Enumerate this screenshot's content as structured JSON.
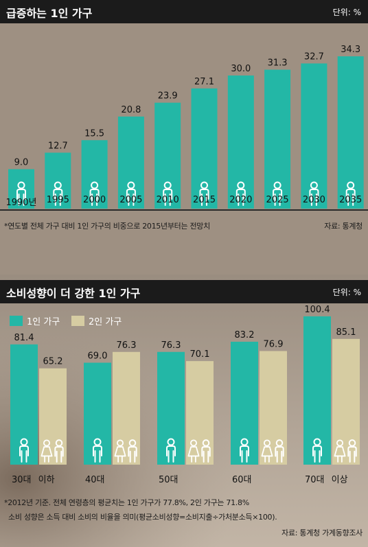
{
  "colors": {
    "teal": "#23b7a6",
    "beige": "#d6cca2",
    "title_bg": "#1b1b1b",
    "icon": "#ffffff"
  },
  "chart1": {
    "title": "급증하는 1인 가구",
    "unit": "단위: %",
    "note": "*연도별 전체 가구 대비 1인 가구의 비중으로 2015년부터는 전망치",
    "source": "자료: 통계청"
  },
  "chart2": {
    "title": "소비성향이 더 강한 1인 가구",
    "unit": "단위: %",
    "legend": [
      "1인 가구",
      "2인 가구"
    ],
    "note_line1": "*2012년 기준. 전체 연령층의 평균치는 1인 가구가 77.8%, 2인 가구는 71.8%",
    "note_line2": "소비 성향은 소득 대비 소비의 비율을 의미(평균소비성향=소비지출÷가처분소득×100).",
    "source": "자료: 통계청 가계동향조사"
  },
  "chart_data": [
    {
      "type": "bar",
      "title": "급증하는 1인 가구",
      "unit": "단위: %",
      "categories": [
        "1990년",
        "1995",
        "2000",
        "2005",
        "2010",
        "2015",
        "2020",
        "2025",
        "2030",
        "2035"
      ],
      "values": [
        9.0,
        12.7,
        15.5,
        20.8,
        23.9,
        27.1,
        30.0,
        31.3,
        32.7,
        34.3
      ],
      "value_labels": [
        "9.0",
        "12.7",
        "15.5",
        "20.8",
        "23.9",
        "27.1",
        "30.0",
        "31.3",
        "32.7",
        "34.3"
      ],
      "ylim": [
        0,
        36
      ],
      "color": "#23b7a6"
    },
    {
      "type": "bar",
      "title": "소비성향이 더 강한 1인 가구",
      "unit": "단위: %",
      "categories": [
        "30대 이하",
        "40대",
        "50대",
        "60대",
        "70대 이상"
      ],
      "series": [
        {
          "name": "1인 가구",
          "values": [
            81.4,
            69.0,
            76.3,
            83.2,
            100.4
          ],
          "labels": [
            "81.4",
            "69.0",
            "76.3",
            "83.2",
            "100.4"
          ],
          "color": "#23b7a6"
        },
        {
          "name": "2인 가구",
          "values": [
            65.2,
            76.3,
            70.1,
            76.9,
            85.1
          ],
          "labels": [
            "65.2",
            "76.3",
            "70.1",
            "76.9",
            "85.1"
          ],
          "color": "#d6cca2"
        }
      ],
      "ylim": [
        0,
        105
      ],
      "legend_position": "top-left"
    }
  ]
}
